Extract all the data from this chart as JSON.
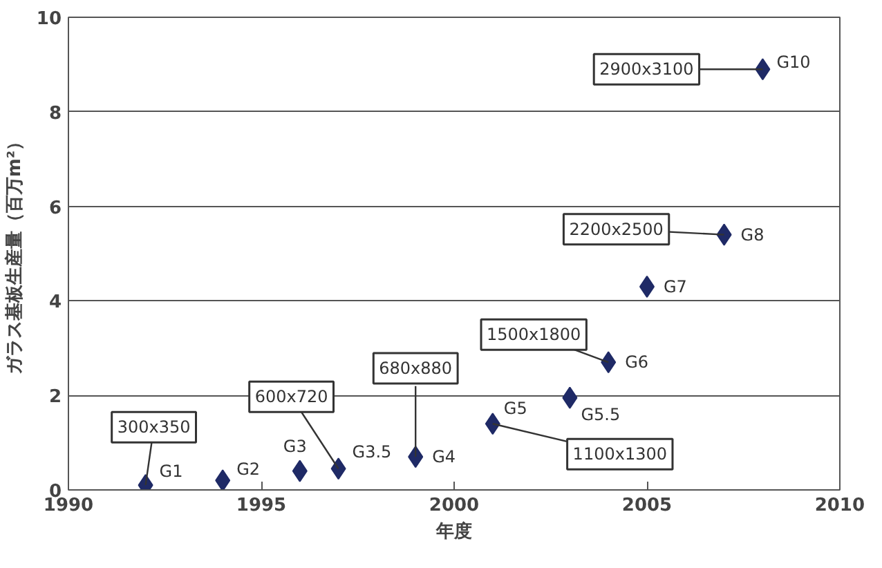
{
  "chart_data": {
    "type": "scatter",
    "xlabel": "年度",
    "ylabel": "ガラス基板生産量（百万m²）",
    "x": [
      1992,
      1994,
      1996,
      1997,
      1999,
      2001,
      2003,
      2004,
      2005,
      2007,
      2008
    ],
    "values": [
      0.1,
      0.2,
      0.4,
      0.45,
      0.7,
      1.4,
      1.95,
      2.7,
      4.3,
      5.4,
      8.9
    ],
    "color": "#1f2a66",
    "marker": "diamond",
    "grid": "y",
    "xlim": [
      1990,
      2010
    ],
    "xticks": [
      1990,
      1995,
      2000,
      2005,
      2010
    ],
    "ylim": [
      0,
      10
    ],
    "yticks": [
      0,
      2,
      4,
      6,
      8,
      10
    ],
    "annotations": [
      {
        "text": "G1",
        "x": 1992,
        "y": 0.1
      },
      {
        "text": "G2",
        "x": 1994,
        "y": 0.2
      },
      {
        "text": "G3",
        "x": 1996,
        "y": 0.4
      },
      {
        "text": "G3.5",
        "x": 1997,
        "y": 0.45
      },
      {
        "text": "G4",
        "x": 1999,
        "y": 0.7
      },
      {
        "text": "G5",
        "x": 2001,
        "y": 1.4
      },
      {
        "text": "G5.5",
        "x": 2003,
        "y": 1.95
      },
      {
        "text": "G6",
        "x": 2004,
        "y": 2.7
      },
      {
        "text": "G7",
        "x": 2005,
        "y": 4.3
      },
      {
        "text": "G8",
        "x": 2007,
        "y": 5.4
      },
      {
        "text": "G10",
        "x": 2008,
        "y": 8.9
      },
      {
        "text": "300x350",
        "x": 1992,
        "y": 0.1
      },
      {
        "text": "600x720",
        "x": 1997,
        "y": 0.45
      },
      {
        "text": "680x880",
        "x": 1999,
        "y": 0.7
      },
      {
        "text": "1100x1300",
        "x": 2001,
        "y": 1.4
      },
      {
        "text": "1500x1800",
        "x": 2004,
        "y": 2.7
      },
      {
        "text": "2200x2500",
        "x": 2007,
        "y": 5.4
      },
      {
        "text": "2900x3100",
        "x": 2008,
        "y": 8.9
      }
    ]
  }
}
